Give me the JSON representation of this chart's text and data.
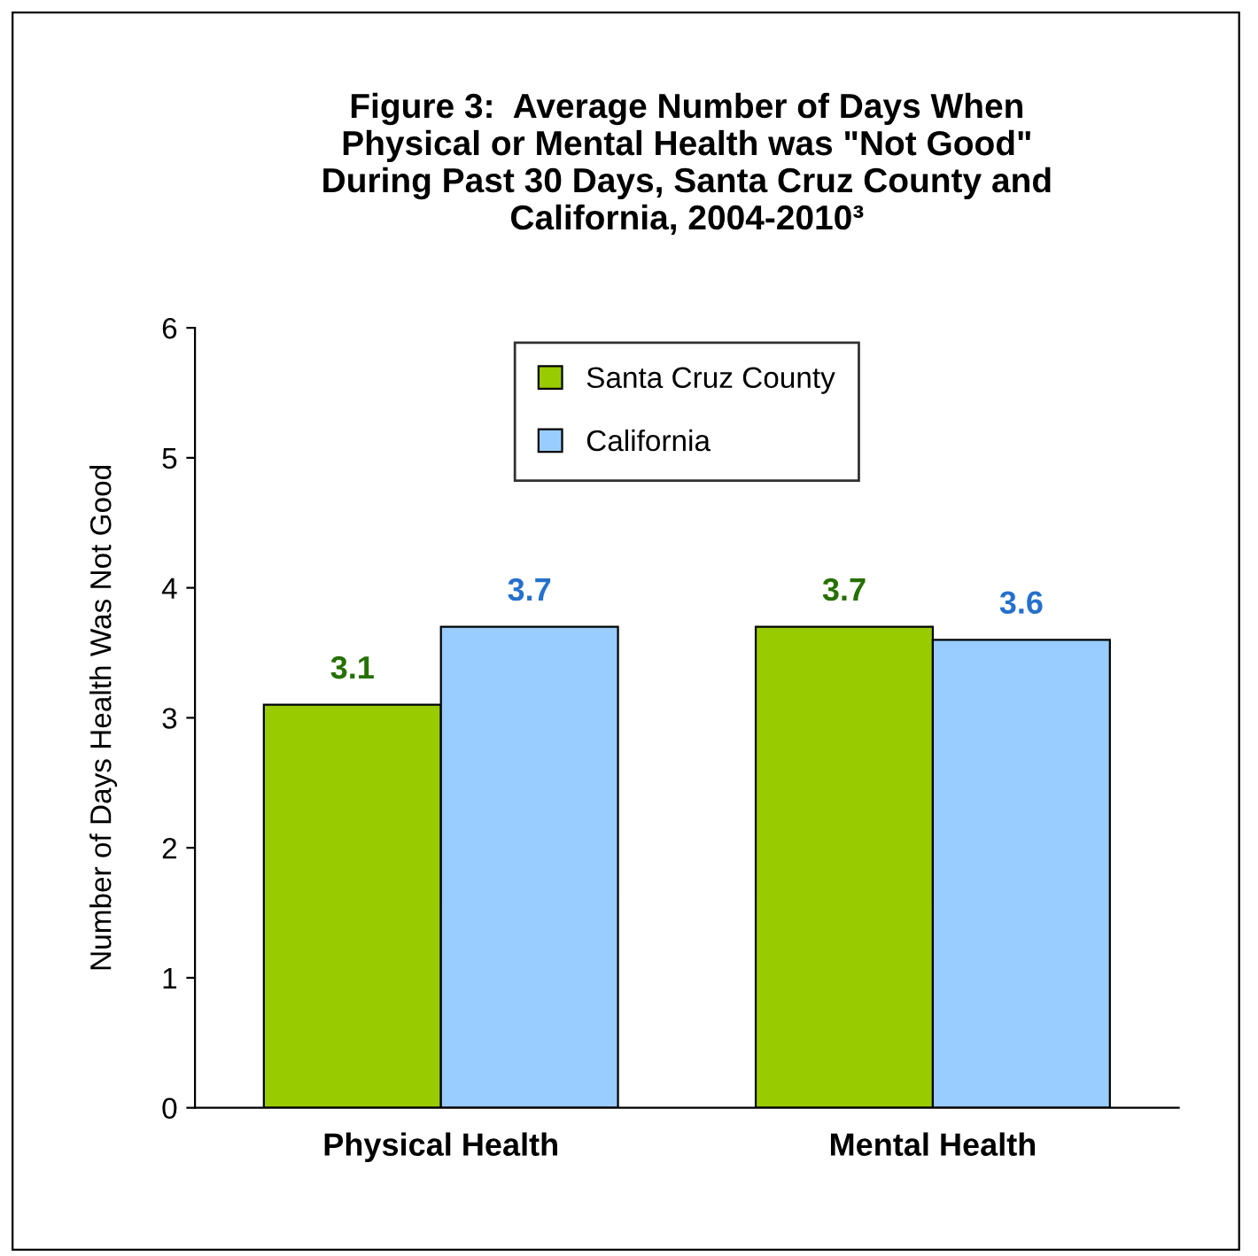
{
  "chart_data": {
    "type": "bar",
    "title": "Figure 3:  Average Number of Days When\nPhysical or Mental Health was \"Not Good\"\nDuring Past 30 Days, Santa Cruz County and\nCalifornia, 2004-2010³",
    "ylabel": "Number of Days Health Was Not Good",
    "categories": [
      "Physical Health",
      "Mental Health"
    ],
    "series": [
      {
        "name": "Santa Cruz County",
        "color": "#99cc00",
        "values": [
          3.1,
          3.7
        ]
      },
      {
        "name": "California",
        "color": "#99ccff",
        "values": [
          3.7,
          3.6
        ]
      }
    ],
    "ylim": [
      0,
      6
    ],
    "yticks": [
      0,
      1,
      2,
      3,
      4,
      5,
      6
    ],
    "grid": false,
    "legend": "top",
    "data_labels": true
  }
}
